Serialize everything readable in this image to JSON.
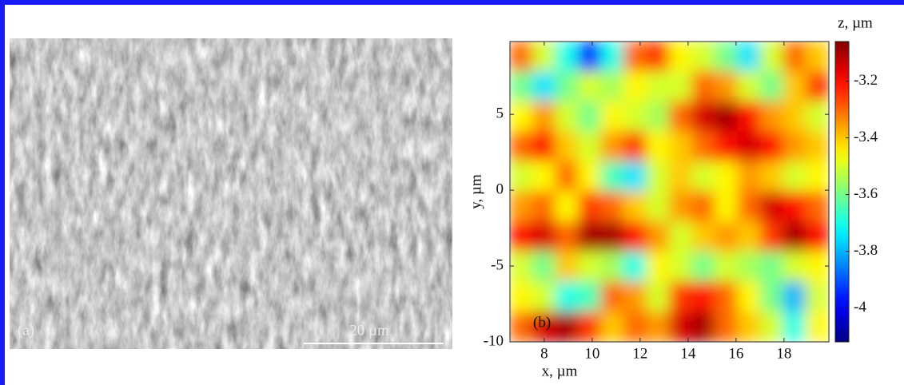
{
  "panel_a": {
    "label": "(a)",
    "scale_bar": "20 µm"
  },
  "chart_data": {
    "type": "heatmap",
    "panel_label": "(b)",
    "xlabel": "x, µm",
    "ylabel": "y, µm",
    "colorbar_label": "z, µm",
    "xlim": [
      6.57,
      19.87
    ],
    "ylim": [
      -10,
      9.8
    ],
    "xticks": [
      8,
      10,
      12,
      14,
      16,
      18
    ],
    "yticks": [
      -10,
      -5,
      0,
      5
    ],
    "clim": [
      -4.12,
      -3.06
    ],
    "cticks": [
      -4,
      -3.8,
      -3.6,
      -3.4,
      -3.2
    ],
    "colormap": "jet",
    "z": [
      [
        -3.3,
        -3.5,
        -3.7,
        -3.95,
        -3.7,
        -3.3,
        -3.25,
        -3.45,
        -3.5,
        -3.6,
        -3.75,
        -3.5,
        -3.3,
        -3.4
      ],
      [
        -3.6,
        -3.75,
        -3.6,
        -3.5,
        -3.55,
        -3.45,
        -3.5,
        -3.5,
        -3.3,
        -3.35,
        -3.5,
        -3.6,
        -3.4,
        -3.25
      ],
      [
        -3.45,
        -3.35,
        -3.5,
        -3.6,
        -3.45,
        -3.5,
        -3.55,
        -3.3,
        -3.15,
        -3.1,
        -3.2,
        -3.35,
        -3.4,
        -3.5
      ],
      [
        -3.3,
        -3.2,
        -3.4,
        -3.5,
        -3.35,
        -3.25,
        -3.45,
        -3.4,
        -3.3,
        -3.2,
        -3.15,
        -3.2,
        -3.35,
        -3.4
      ],
      [
        -3.5,
        -3.45,
        -3.3,
        -3.45,
        -3.65,
        -3.75,
        -3.5,
        -3.4,
        -3.5,
        -3.45,
        -3.35,
        -3.4,
        -3.5,
        -3.45
      ],
      [
        -3.35,
        -3.3,
        -3.45,
        -3.25,
        -3.3,
        -3.4,
        -3.5,
        -3.35,
        -3.3,
        -3.45,
        -3.3,
        -3.15,
        -3.2,
        -3.3
      ],
      [
        -3.2,
        -3.15,
        -3.3,
        -3.1,
        -3.1,
        -3.2,
        -3.35,
        -3.5,
        -3.4,
        -3.35,
        -3.4,
        -3.25,
        -3.1,
        -3.2
      ],
      [
        -3.5,
        -3.6,
        -3.4,
        -3.5,
        -3.55,
        -3.7,
        -3.45,
        -3.5,
        -3.6,
        -3.5,
        -3.55,
        -3.6,
        -3.5,
        -3.45
      ],
      [
        -3.45,
        -3.5,
        -3.7,
        -3.65,
        -3.3,
        -3.35,
        -3.5,
        -3.25,
        -3.2,
        -3.3,
        -3.45,
        -3.6,
        -3.8,
        -3.5
      ],
      [
        -3.3,
        -3.15,
        -3.1,
        -3.25,
        -3.4,
        -3.3,
        -3.35,
        -3.15,
        -3.1,
        -3.3,
        -3.4,
        -3.5,
        -3.7,
        -3.45
      ]
    ]
  }
}
